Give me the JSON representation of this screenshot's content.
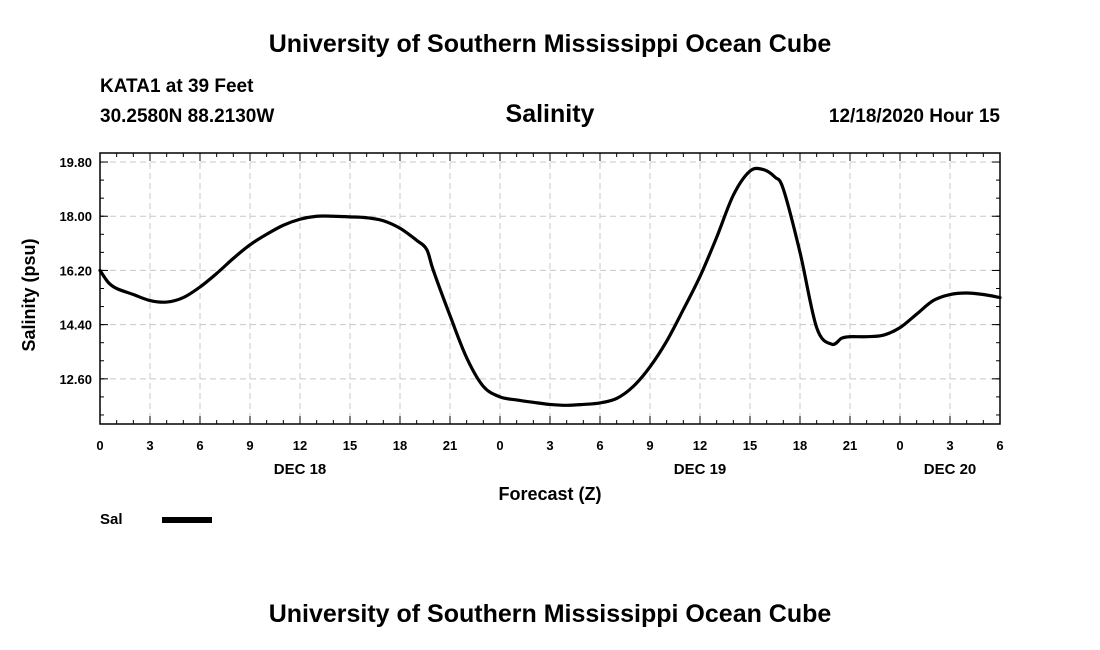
{
  "header": {
    "title_top": "University of Southern Mississippi Ocean Cube",
    "station": "KATA1 at 39 Feet",
    "coords": "30.2580N 88.2130W",
    "variable": "Salinity",
    "timestamp": "12/18/2020 Hour 15",
    "title_bottom": "University of Southern Mississippi Ocean Cube"
  },
  "legend": {
    "label": "Sal",
    "color": "#000000"
  },
  "chart_data": {
    "type": "line",
    "title": "Salinity",
    "xlabel": "Forecast (Z)",
    "ylabel": "Salinity (psu)",
    "xlim": [
      0,
      54
    ],
    "ylim": [
      11.1,
      20.1
    ],
    "yticks": [
      12.6,
      14.4,
      16.2,
      18.0,
      19.8
    ],
    "ytick_labels": [
      "12.60",
      "14.40",
      "16.20",
      "18.00",
      "19.80"
    ],
    "xticks": [
      0,
      3,
      6,
      9,
      12,
      15,
      18,
      21,
      24,
      27,
      30,
      33,
      36,
      39,
      42,
      45,
      48,
      51,
      54
    ],
    "xtick_labels": [
      "0",
      "3",
      "6",
      "9",
      "12",
      "15",
      "18",
      "21",
      "0",
      "3",
      "6",
      "9",
      "12",
      "15",
      "18",
      "21",
      "0",
      "3",
      "6"
    ],
    "date_labels": [
      {
        "x": 12,
        "label": "DEC 18"
      },
      {
        "x": 36,
        "label": "DEC 19"
      },
      {
        "x": 51,
        "label": "DEC 20"
      }
    ],
    "grid": true,
    "series": [
      {
        "name": "Sal",
        "x": [
          0,
          0.5,
          1,
          2,
          3,
          4,
          5,
          6,
          7,
          8,
          9,
          10,
          11,
          12,
          13,
          14,
          15,
          16,
          17,
          18,
          19,
          19.6,
          20,
          21,
          22,
          23,
          24,
          25,
          26,
          27,
          28,
          29,
          30,
          31,
          32,
          33,
          34,
          35,
          36,
          37,
          38,
          39,
          39.8,
          40.5,
          41,
          42,
          43,
          43.9,
          44.5,
          45,
          46,
          47,
          48,
          49,
          50,
          51,
          52,
          53,
          54
        ],
        "y": [
          16.2,
          15.8,
          15.6,
          15.4,
          15.2,
          15.15,
          15.3,
          15.65,
          16.1,
          16.6,
          17.05,
          17.4,
          17.7,
          17.9,
          18.0,
          18.0,
          17.98,
          17.95,
          17.85,
          17.6,
          17.2,
          16.9,
          16.2,
          14.7,
          13.3,
          12.35,
          12.0,
          11.9,
          11.82,
          11.75,
          11.72,
          11.75,
          11.8,
          11.95,
          12.35,
          13.0,
          13.85,
          14.9,
          16.0,
          17.3,
          18.7,
          19.5,
          19.55,
          19.3,
          18.9,
          16.8,
          14.3,
          13.75,
          13.95,
          14.0,
          14.0,
          14.05,
          14.3,
          14.75,
          15.2,
          15.4,
          15.45,
          15.4,
          15.3
        ]
      }
    ]
  }
}
